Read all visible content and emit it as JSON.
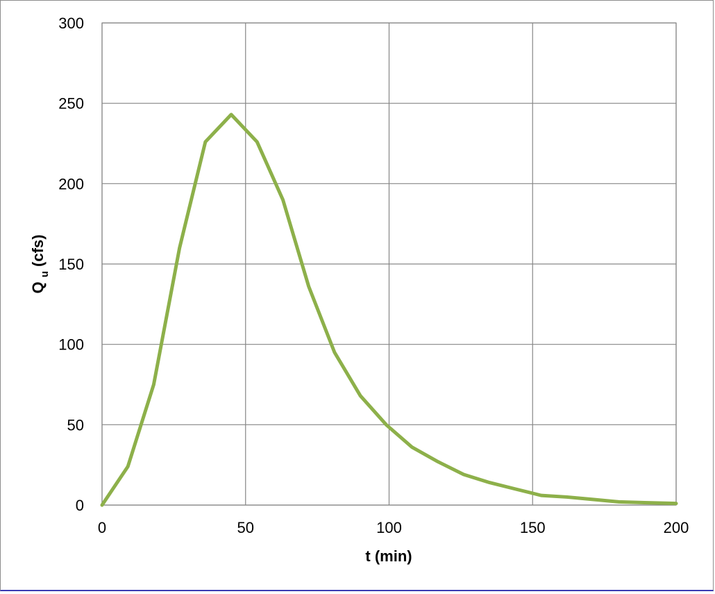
{
  "chart_data": {
    "type": "line",
    "title": "",
    "xlabel": "t (min)",
    "ylabel_main": "Q",
    "ylabel_sub": "u",
    "ylabel_rest": " (cfs)",
    "xlim": [
      0,
      200
    ],
    "ylim": [
      0,
      300
    ],
    "x_ticks": [
      0,
      50,
      100,
      150,
      200
    ],
    "y_ticks": [
      0,
      50,
      100,
      150,
      200,
      250,
      300
    ],
    "grid": true,
    "legend": "none",
    "series": [
      {
        "color": "#8db04a",
        "x": [
          0,
          9,
          18,
          27,
          36,
          45,
          54,
          63,
          72,
          81,
          90,
          99,
          108,
          117,
          126,
          135,
          144,
          153,
          162,
          171,
          180,
          189,
          200
        ],
        "y": [
          0,
          24,
          75,
          160,
          226,
          243,
          226,
          190,
          136,
          95,
          68,
          50,
          36,
          27,
          19,
          14,
          10,
          6,
          5,
          3.5,
          2,
          1.5,
          1
        ]
      }
    ]
  }
}
